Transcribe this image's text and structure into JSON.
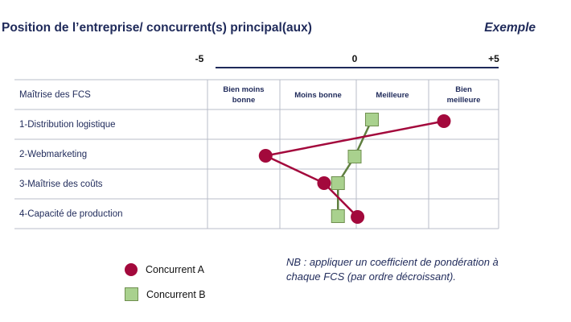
{
  "header": {
    "title": "Position de l’entreprise/ concurrent(s) principal(aux)",
    "tag": "Exemple"
  },
  "chart_data": {
    "type": "line",
    "axis": {
      "min_label": "-5",
      "mid_label": "0",
      "max_label": "+5",
      "range": [
        -5,
        5
      ]
    },
    "row_header": "Maîtrise des FCS",
    "columns": [
      "Bien moins bonne",
      "Moins bonne",
      "Meilleure",
      "Bien meilleure"
    ],
    "categories": [
      "1-Distribution logistique",
      "2-Webmarketing",
      "3-Maîtrise des coûts",
      "4-Capacité de production"
    ],
    "series": [
      {
        "name": "Concurrent A",
        "color": "#a3093c",
        "marker": "circle",
        "values": [
          3.1,
          -3.2,
          -1.1,
          0.1
        ]
      },
      {
        "name": "Concurrent B",
        "color": "#a9d18e",
        "line_color": "#5f7f3f",
        "marker": "square",
        "values": [
          0.6,
          0.0,
          -0.6,
          -0.6
        ]
      }
    ]
  },
  "note": "NB : appliquer un coefficient de pondération à chaque FCS (par ordre décroissant)."
}
